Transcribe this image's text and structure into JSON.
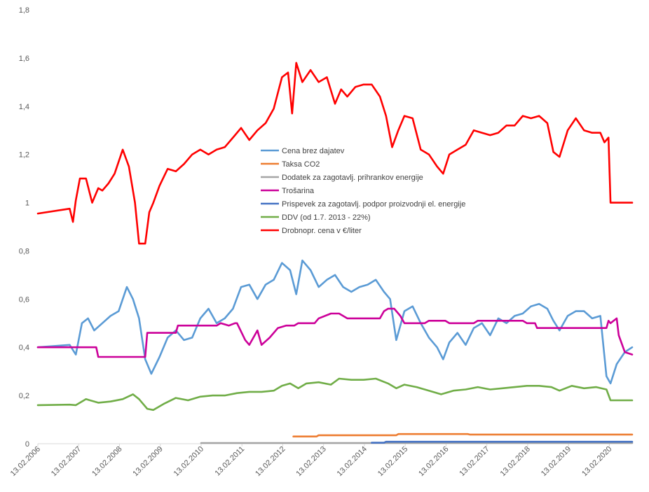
{
  "chart_data": {
    "type": "line",
    "ylim": [
      0,
      1.8
    ],
    "y_ticks": [
      "0",
      "0,2",
      "0,4",
      "0,6",
      "0,8",
      "1",
      "1,2",
      "1,4",
      "1,6",
      "1,8"
    ],
    "x_ticks": [
      "13.02.2006",
      "13.02.2007",
      "13.02.2008",
      "13.02.2009",
      "13.02.2010",
      "13.02.2011",
      "13.02.2012",
      "13.02.2013",
      "13.02.2014",
      "13.02.2015",
      "13.02.2016",
      "13.02.2017",
      "13.02.2018",
      "13.02.2019",
      "13.02.2020"
    ],
    "xlim": [
      2006.12,
      2020.68
    ],
    "grid": "none",
    "legend_position": "center",
    "series": [
      {
        "name": "Cena brez dajatev",
        "color": "#5b9bd5",
        "x": [
          2006.12,
          2006.9,
          2007.05,
          2007.2,
          2007.35,
          2007.5,
          2007.7,
          2007.9,
          2008.1,
          2008.3,
          2008.45,
          2008.6,
          2008.75,
          2008.9,
          2009.1,
          2009.3,
          2009.5,
          2009.7,
          2009.9,
          2010.1,
          2010.3,
          2010.5,
          2010.7,
          2010.9,
          2011.1,
          2011.3,
          2011.5,
          2011.7,
          2011.9,
          2012.1,
          2012.3,
          2012.45,
          2012.6,
          2012.8,
          2013.0,
          2013.2,
          2013.4,
          2013.6,
          2013.8,
          2014.0,
          2014.2,
          2014.4,
          2014.6,
          2014.75,
          2014.9,
          2015.1,
          2015.3,
          2015.5,
          2015.7,
          2015.9,
          2016.05,
          2016.2,
          2016.4,
          2016.6,
          2016.8,
          2017.0,
          2017.2,
          2017.4,
          2017.6,
          2017.8,
          2018.0,
          2018.2,
          2018.4,
          2018.6,
          2018.75,
          2018.9,
          2019.1,
          2019.3,
          2019.5,
          2019.7,
          2019.9,
          2020.05,
          2020.15,
          2020.3,
          2020.5,
          2020.68
        ],
        "y": [
          0.4,
          0.41,
          0.37,
          0.5,
          0.52,
          0.47,
          0.5,
          0.53,
          0.55,
          0.65,
          0.6,
          0.52,
          0.35,
          0.29,
          0.36,
          0.44,
          0.47,
          0.43,
          0.44,
          0.52,
          0.56,
          0.5,
          0.52,
          0.56,
          0.65,
          0.66,
          0.6,
          0.66,
          0.68,
          0.75,
          0.72,
          0.62,
          0.76,
          0.72,
          0.65,
          0.68,
          0.7,
          0.65,
          0.63,
          0.65,
          0.66,
          0.68,
          0.63,
          0.6,
          0.43,
          0.55,
          0.57,
          0.5,
          0.44,
          0.4,
          0.35,
          0.42,
          0.46,
          0.41,
          0.48,
          0.5,
          0.45,
          0.52,
          0.5,
          0.53,
          0.54,
          0.57,
          0.58,
          0.56,
          0.51,
          0.47,
          0.53,
          0.55,
          0.55,
          0.52,
          0.53,
          0.28,
          0.25,
          0.33,
          0.38,
          0.4
        ]
      },
      {
        "name": "Taksa CO2",
        "color": "#ed7d31",
        "x": [
          2012.38,
          2012.95,
          2013.0,
          2014.9,
          2014.95,
          2016.65,
          2016.7,
          2020.68
        ],
        "y": [
          0.03,
          0.03,
          0.035,
          0.035,
          0.04,
          0.04,
          0.038,
          0.038
        ]
      },
      {
        "name": "Dodatek za zagotavlj. prihrankov energije",
        "color": "#a5a5a5",
        "x": [
          2010.12,
          2020.68
        ],
        "y": [
          0.003,
          0.003
        ]
      },
      {
        "name": "Trošarina",
        "color": "#cc0099",
        "x": [
          2006.12,
          2007.55,
          2007.6,
          2008.75,
          2008.8,
          2009.5,
          2009.55,
          2010.5,
          2010.6,
          2010.8,
          2010.95,
          2011.0,
          2011.2,
          2011.3,
          2011.5,
          2011.6,
          2011.8,
          2012.0,
          2012.2,
          2012.4,
          2012.5,
          2012.9,
          2013.0,
          2013.3,
          2013.5,
          2013.7,
          2014.2,
          2014.5,
          2014.6,
          2014.7,
          2014.85,
          2015.0,
          2015.1,
          2015.6,
          2015.7,
          2016.1,
          2016.2,
          2016.8,
          2016.9,
          2018.0,
          2018.1,
          2018.3,
          2018.35,
          2018.9,
          2019.0,
          2020.05,
          2020.1,
          2020.15,
          2020.3,
          2020.35,
          2020.5,
          2020.68
        ],
        "y": [
          0.4,
          0.4,
          0.36,
          0.36,
          0.46,
          0.46,
          0.49,
          0.49,
          0.5,
          0.49,
          0.5,
          0.5,
          0.43,
          0.41,
          0.47,
          0.41,
          0.44,
          0.48,
          0.49,
          0.49,
          0.5,
          0.5,
          0.52,
          0.54,
          0.54,
          0.52,
          0.52,
          0.52,
          0.55,
          0.56,
          0.56,
          0.53,
          0.5,
          0.5,
          0.51,
          0.51,
          0.5,
          0.5,
          0.51,
          0.51,
          0.5,
          0.5,
          0.48,
          0.48,
          0.48,
          0.48,
          0.51,
          0.5,
          0.52,
          0.45,
          0.38,
          0.37
        ]
      },
      {
        "name": "Prispevek za zagotavlj. podpor proizvodnji el. energije",
        "color": "#4472c4",
        "x": [
          2014.3,
          2014.6,
          2014.65,
          2020.68
        ],
        "y": [
          0.004,
          0.004,
          0.008,
          0.008
        ]
      },
      {
        "name": "DDV (od 1.7. 2013 - 22%)",
        "color": "#70ad47",
        "x": [
          2006.12,
          2006.9,
          2007.05,
          2007.3,
          2007.6,
          2007.9,
          2008.2,
          2008.45,
          2008.6,
          2008.8,
          2008.95,
          2009.2,
          2009.5,
          2009.8,
          2010.1,
          2010.4,
          2010.7,
          2011.0,
          2011.3,
          2011.6,
          2011.9,
          2012.1,
          2012.3,
          2012.5,
          2012.7,
          2013.0,
          2013.3,
          2013.5,
          2013.8,
          2014.1,
          2014.4,
          2014.7,
          2014.9,
          2015.1,
          2015.4,
          2015.7,
          2016.0,
          2016.3,
          2016.6,
          2016.9,
          2017.2,
          2017.5,
          2017.8,
          2018.1,
          2018.4,
          2018.7,
          2018.9,
          2019.2,
          2019.5,
          2019.8,
          2020.05,
          2020.15,
          2020.3,
          2020.68
        ],
        "y": [
          0.16,
          0.162,
          0.16,
          0.185,
          0.17,
          0.175,
          0.185,
          0.205,
          0.185,
          0.145,
          0.14,
          0.165,
          0.19,
          0.18,
          0.195,
          0.2,
          0.2,
          0.21,
          0.215,
          0.215,
          0.22,
          0.24,
          0.25,
          0.23,
          0.25,
          0.255,
          0.245,
          0.27,
          0.265,
          0.265,
          0.27,
          0.25,
          0.23,
          0.245,
          0.235,
          0.22,
          0.205,
          0.22,
          0.225,
          0.235,
          0.225,
          0.23,
          0.235,
          0.24,
          0.24,
          0.235,
          0.22,
          0.24,
          0.23,
          0.235,
          0.225,
          0.18,
          0.18,
          0.18
        ]
      },
      {
        "name": "Drobnopr. cena v €/liter",
        "color": "#ff0000",
        "x": [
          2006.12,
          2006.9,
          2006.98,
          2007.05,
          2007.15,
          2007.3,
          2007.45,
          2007.6,
          2007.7,
          2007.85,
          2008.0,
          2008.2,
          2008.35,
          2008.5,
          2008.6,
          2008.75,
          2008.85,
          2008.95,
          2009.1,
          2009.3,
          2009.5,
          2009.7,
          2009.9,
          2010.1,
          2010.3,
          2010.5,
          2010.7,
          2010.9,
          2011.1,
          2011.3,
          2011.5,
          2011.7,
          2011.9,
          2012.1,
          2012.25,
          2012.35,
          2012.45,
          2012.6,
          2012.8,
          2013.0,
          2013.2,
          2013.4,
          2013.55,
          2013.7,
          2013.9,
          2014.1,
          2014.3,
          2014.5,
          2014.65,
          2014.8,
          2014.95,
          2015.1,
          2015.3,
          2015.5,
          2015.7,
          2015.9,
          2016.05,
          2016.2,
          2016.4,
          2016.6,
          2016.8,
          2017.0,
          2017.2,
          2017.4,
          2017.6,
          2017.8,
          2018.0,
          2018.2,
          2018.4,
          2018.6,
          2018.75,
          2018.9,
          2019.1,
          2019.3,
          2019.5,
          2019.7,
          2019.9,
          2020.0,
          2020.1,
          2020.15,
          2020.3,
          2020.68
        ],
        "y": [
          0.955,
          0.975,
          0.92,
          1.01,
          1.1,
          1.1,
          1.0,
          1.06,
          1.05,
          1.08,
          1.12,
          1.22,
          1.15,
          1.0,
          0.83,
          0.83,
          0.96,
          1.0,
          1.07,
          1.14,
          1.13,
          1.16,
          1.2,
          1.22,
          1.2,
          1.22,
          1.23,
          1.27,
          1.31,
          1.26,
          1.3,
          1.33,
          1.39,
          1.52,
          1.54,
          1.37,
          1.58,
          1.5,
          1.55,
          1.5,
          1.52,
          1.41,
          1.47,
          1.44,
          1.48,
          1.49,
          1.49,
          1.44,
          1.36,
          1.23,
          1.3,
          1.36,
          1.35,
          1.22,
          1.2,
          1.15,
          1.12,
          1.2,
          1.22,
          1.24,
          1.3,
          1.29,
          1.28,
          1.29,
          1.32,
          1.32,
          1.36,
          1.35,
          1.36,
          1.33,
          1.21,
          1.19,
          1.3,
          1.35,
          1.3,
          1.29,
          1.29,
          1.25,
          1.27,
          1.0,
          1.0,
          1.0
        ]
      }
    ]
  }
}
